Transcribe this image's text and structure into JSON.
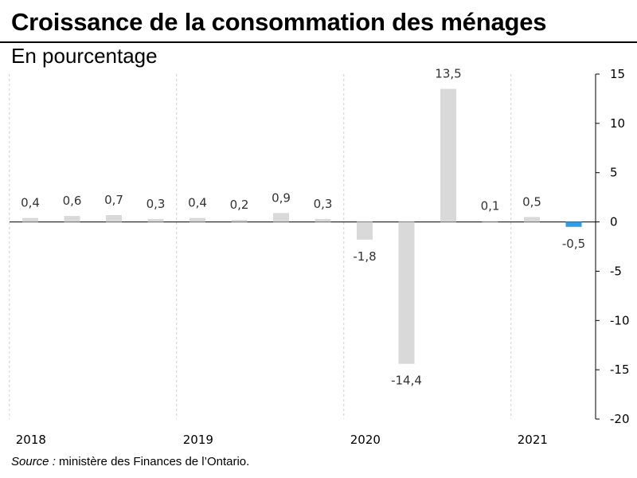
{
  "title": "Croissance de la consommation des ménages",
  "subtitle": "En pourcentage",
  "source": {
    "label": "Source :",
    "text": "ministère des Finances de l’Ontario."
  },
  "colors": {
    "bar_default": "#d9d9d9",
    "bar_highlight": "#2e9ee8",
    "axis": "#000000",
    "gridline": "#d0d0d0"
  },
  "chart_data": {
    "type": "bar",
    "years": [
      "2018",
      "2019",
      "2020",
      "2021"
    ],
    "values": [
      0.4,
      0.6,
      0.7,
      0.3,
      0.4,
      0.2,
      0.9,
      0.3,
      -1.8,
      -14.4,
      13.5,
      0.1,
      0.5,
      -0.5
    ],
    "data_labels": [
      "0,4",
      "0,6",
      "0,7",
      "0,3",
      "0,4",
      "0,2",
      "0,9",
      "0,3",
      "-1,8",
      "-14,4",
      "13,5",
      "0,1",
      "0,5",
      "-0,5"
    ],
    "highlight_index": 13,
    "y_ticks": [
      15,
      10,
      5,
      0,
      -5,
      -10,
      -15,
      -20
    ],
    "y_tick_labels": [
      "15",
      "10",
      "5",
      "0",
      "-5",
      "-10",
      "-15",
      "-20"
    ],
    "ylim": [
      -20,
      15
    ],
    "y_axis_side": "right",
    "year_separators": "dashed-vertical"
  }
}
